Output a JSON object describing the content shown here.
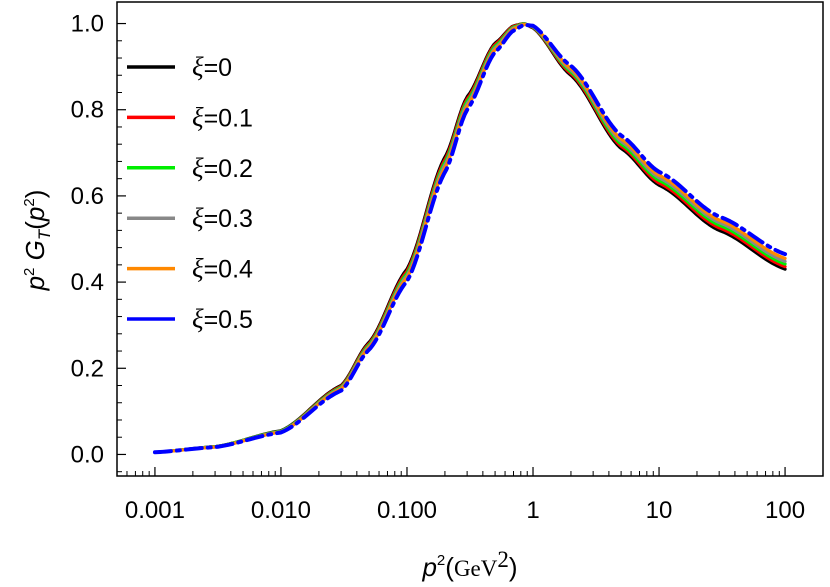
{
  "chart_data": {
    "type": "line",
    "xscale": "log",
    "xlim": [
      0.0005,
      200
    ],
    "ylim": [
      -0.05,
      1.05
    ],
    "grid": false,
    "legend_position": "top-left",
    "xticks": [
      {
        "value": 0.001,
        "label": "0.001"
      },
      {
        "value": 0.01,
        "label": "0.010"
      },
      {
        "value": 0.1,
        "label": "0.100"
      },
      {
        "value": 1,
        "label": "1"
      },
      {
        "value": 10,
        "label": "10"
      },
      {
        "value": 100,
        "label": "100"
      }
    ],
    "yticks": [
      {
        "value": 0.0,
        "label": "0.0"
      },
      {
        "value": 0.2,
        "label": "0.2"
      },
      {
        "value": 0.4,
        "label": "0.4"
      },
      {
        "value": 0.6,
        "label": "0.6"
      },
      {
        "value": 0.8,
        "label": "0.8"
      },
      {
        "value": 1.0,
        "label": "1.0"
      }
    ],
    "ylabel": {
      "p": "p",
      "exp": "2",
      "G": "G",
      "sub": "T",
      "open": "(",
      "p2": "p",
      "exp2": "2",
      "close": ")"
    },
    "xlabel": {
      "p": "p",
      "exp": "2",
      "open": "(",
      "unit": "GeV",
      "unit_exp": "2",
      "close": ")"
    },
    "series": [
      {
        "name": "ξ=0",
        "color": "#000000",
        "dash": "solid",
        "x": [
          0.001,
          0.003,
          0.01,
          0.03,
          0.05,
          0.1,
          0.2,
          0.3,
          0.5,
          0.7,
          0.85,
          1,
          2,
          5,
          10,
          30,
          100
        ],
        "y": [
          0.005,
          0.018,
          0.055,
          0.16,
          0.26,
          0.43,
          0.69,
          0.83,
          0.955,
          0.995,
          1.0,
          0.99,
          0.88,
          0.71,
          0.625,
          0.52,
          0.43
        ]
      },
      {
        "name": "ξ=0.1",
        "color": "#ff0000",
        "dash": "solid",
        "x": [
          0.001,
          0.003,
          0.01,
          0.03,
          0.05,
          0.1,
          0.2,
          0.3,
          0.5,
          0.7,
          0.85,
          1,
          2,
          5,
          10,
          30,
          100
        ],
        "y": [
          0.005,
          0.018,
          0.054,
          0.158,
          0.257,
          0.425,
          0.684,
          0.825,
          0.952,
          0.994,
          1.0,
          0.991,
          0.884,
          0.715,
          0.63,
          0.526,
          0.436
        ]
      },
      {
        "name": "ξ=0.2",
        "color": "#00ee00",
        "dash": "solid",
        "x": [
          0.001,
          0.003,
          0.01,
          0.03,
          0.05,
          0.1,
          0.2,
          0.3,
          0.5,
          0.7,
          0.85,
          1,
          2,
          5,
          10,
          30,
          100
        ],
        "y": [
          0.005,
          0.018,
          0.054,
          0.156,
          0.254,
          0.42,
          0.678,
          0.82,
          0.948,
          0.992,
          1.0,
          0.992,
          0.888,
          0.72,
          0.636,
          0.532,
          0.442
        ]
      },
      {
        "name": "ξ=0.3",
        "color": "#888888",
        "dash": "solid",
        "x": [
          0.001,
          0.003,
          0.01,
          0.03,
          0.05,
          0.1,
          0.2,
          0.3,
          0.5,
          0.7,
          0.85,
          1,
          2,
          5,
          10,
          30,
          100
        ],
        "y": [
          0.005,
          0.017,
          0.053,
          0.154,
          0.251,
          0.415,
          0.672,
          0.814,
          0.944,
          0.99,
          0.999,
          0.993,
          0.892,
          0.726,
          0.642,
          0.538,
          0.448
        ]
      },
      {
        "name": "ξ=0.4",
        "color": "#ff8800",
        "dash": "solid",
        "x": [
          0.001,
          0.003,
          0.01,
          0.03,
          0.05,
          0.1,
          0.2,
          0.3,
          0.5,
          0.7,
          0.85,
          1,
          2,
          5,
          10,
          30,
          100
        ],
        "y": [
          0.005,
          0.017,
          0.052,
          0.152,
          0.248,
          0.41,
          0.665,
          0.808,
          0.94,
          0.988,
          0.998,
          0.994,
          0.896,
          0.732,
          0.648,
          0.544,
          0.455
        ]
      },
      {
        "name": "ξ=0.5",
        "color": "#0000ff",
        "dash": "dashdot",
        "x": [
          0.001,
          0.003,
          0.01,
          0.03,
          0.05,
          0.1,
          0.2,
          0.3,
          0.5,
          0.7,
          0.85,
          1,
          2,
          5,
          10,
          30,
          100
        ],
        "y": [
          0.005,
          0.017,
          0.051,
          0.148,
          0.243,
          0.402,
          0.655,
          0.8,
          0.934,
          0.984,
          0.997,
          0.995,
          0.902,
          0.74,
          0.656,
          0.552,
          0.465
        ]
      }
    ]
  }
}
